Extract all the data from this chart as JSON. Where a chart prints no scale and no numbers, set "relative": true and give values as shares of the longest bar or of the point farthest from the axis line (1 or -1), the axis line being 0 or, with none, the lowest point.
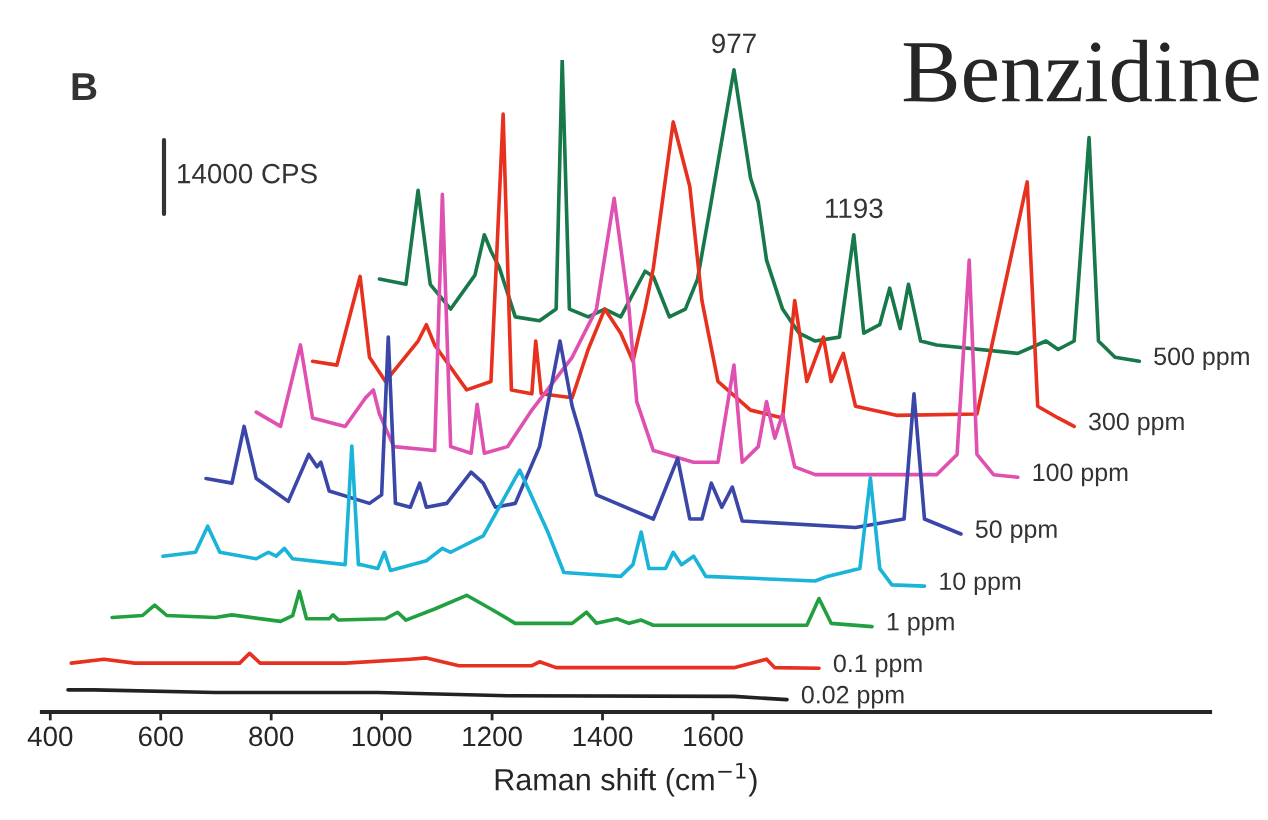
{
  "chart_data": {
    "type": "line",
    "title": "Benzidine",
    "xlabel": "Raman shift (cm$^{−1}$)",
    "relative": true,
    "xlim": [
      385,
      2500
    ],
    "xticks": [
      400,
      600,
      800,
      1000,
      1200,
      1400,
      1600
    ],
    "grid": false,
    "legend": false,
    "line_style": "solid",
    "annotations": [
      "B",
      "14000 CPS",
      {
        "text": "977",
        "x": 1638,
        "y": 0.985
      },
      {
        "text": "1193",
        "x": 1855,
        "y": 0.732
      }
    ],
    "series": [
      {
        "name": "500 ppm",
        "color": "#17784a",
        "x": [
          996,
          1044,
          1066,
          1088,
          1125,
          1169,
          1186,
          1198,
          1213,
          1242,
          1286,
          1316,
          1327,
          1340,
          1374,
          1404,
          1433,
          1477,
          1492,
          1521,
          1550,
          1572,
          1594,
          1638,
          1668,
          1682,
          1697,
          1726,
          1756,
          1785,
          1829,
          1855,
          1873,
          1902,
          1920,
          1939,
          1954,
          1976,
          2005,
          2152,
          2203,
          2225,
          2254,
          2281,
          2298,
          2328,
          2372
        ],
        "values": [
          0.664,
          0.656,
          0.8,
          0.656,
          0.618,
          0.67,
          0.732,
          0.707,
          0.682,
          0.606,
          0.6,
          0.618,
          1.0,
          0.618,
          0.606,
          0.618,
          0.606,
          0.676,
          0.668,
          0.606,
          0.618,
          0.664,
          0.769,
          0.985,
          0.819,
          0.782,
          0.693,
          0.618,
          0.581,
          0.569,
          0.575,
          0.732,
          0.581,
          0.594,
          0.65,
          0.588,
          0.656,
          0.569,
          0.563,
          0.55,
          0.569,
          0.556,
          0.569,
          0.881,
          0.569,
          0.544,
          0.538
        ]
      },
      {
        "name": "300 ppm",
        "color": "#e8301e",
        "x": [
          875,
          919,
          961,
          978,
          1007,
          1066,
          1081,
          1096,
          1154,
          1198,
          1220,
          1235,
          1272,
          1279,
          1289,
          1345,
          1374,
          1404,
          1433,
          1455,
          1477,
          1492,
          1528,
          1558,
          1580,
          1609,
          1668,
          1726,
          1748,
          1770,
          1800,
          1814,
          1836,
          1858,
          1932,
          2078,
          2169,
          2188,
          2225,
          2254
        ],
        "values": [
          0.538,
          0.532,
          0.668,
          0.544,
          0.507,
          0.569,
          0.594,
          0.563,
          0.494,
          0.507,
          0.917,
          0.494,
          0.488,
          0.569,
          0.488,
          0.482,
          0.556,
          0.618,
          0.581,
          0.538,
          0.618,
          0.681,
          0.905,
          0.806,
          0.631,
          0.507,
          0.463,
          0.451,
          0.631,
          0.507,
          0.575,
          0.507,
          0.55,
          0.469,
          0.455,
          0.457,
          0.813,
          0.469,
          0.451,
          0.438
        ]
      },
      {
        "name": "100 ppm",
        "color": "#e050b0",
        "x": [
          773,
          817,
          853,
          875,
          934,
          971,
          985,
          996,
          1022,
          1096,
          1110,
          1125,
          1162,
          1173,
          1186,
          1228,
          1272,
          1345,
          1389,
          1421,
          1448,
          1462,
          1492,
          1565,
          1609,
          1638,
          1653,
          1682,
          1697,
          1712,
          1726,
          1748,
          1785,
          2005,
          2042,
          2064,
          2078,
          2108,
          2152
        ],
        "values": [
          0.46,
          0.438,
          0.563,
          0.451,
          0.438,
          0.482,
          0.494,
          0.457,
          0.407,
          0.401,
          0.794,
          0.407,
          0.397,
          0.472,
          0.397,
          0.407,
          0.463,
          0.544,
          0.618,
          0.788,
          0.618,
          0.476,
          0.401,
          0.383,
          0.383,
          0.532,
          0.383,
          0.407,
          0.476,
          0.42,
          0.457,
          0.376,
          0.364,
          0.364,
          0.395,
          0.693,
          0.395,
          0.364,
          0.36
        ]
      },
      {
        "name": "50 ppm",
        "color": "#3a46a8",
        "x": [
          682,
          729,
          751,
          773,
          831,
          868,
          883,
          890,
          905,
          978,
          1000,
          1012,
          1025,
          1052,
          1069,
          1081,
          1118,
          1162,
          1184,
          1206,
          1242,
          1286,
          1323,
          1345,
          1360,
          1389,
          1492,
          1536,
          1558,
          1580,
          1597,
          1616,
          1635,
          1653,
          1858,
          1946,
          1964,
          1983,
          2049
        ],
        "values": [
          0.358,
          0.351,
          0.438,
          0.358,
          0.323,
          0.395,
          0.376,
          0.383,
          0.339,
          0.32,
          0.333,
          0.575,
          0.32,
          0.314,
          0.351,
          0.314,
          0.32,
          0.368,
          0.351,
          0.314,
          0.32,
          0.407,
          0.569,
          0.469,
          0.426,
          0.333,
          0.296,
          0.389,
          0.296,
          0.296,
          0.351,
          0.314,
          0.345,
          0.293,
          0.283,
          0.296,
          0.488,
          0.296,
          0.273
        ]
      },
      {
        "name": "10 ppm",
        "color": "#19b4d8",
        "x": [
          604,
          663,
          685,
          707,
          773,
          795,
          809,
          824,
          839,
          934,
          946,
          958,
          963,
          993,
          1005,
          1016,
          1081,
          1110,
          1125,
          1184,
          1250,
          1272,
          1301,
          1330,
          1433,
          1455,
          1470,
          1484,
          1514,
          1528,
          1543,
          1565,
          1587,
          1785,
          1807,
          1866,
          1885,
          1902,
          1924,
          1983
        ],
        "values": [
          0.239,
          0.245,
          0.285,
          0.245,
          0.235,
          0.245,
          0.239,
          0.251,
          0.235,
          0.226,
          0.408,
          0.226,
          0.226,
          0.22,
          0.245,
          0.217,
          0.232,
          0.251,
          0.245,
          0.27,
          0.371,
          0.33,
          0.276,
          0.214,
          0.208,
          0.226,
          0.276,
          0.22,
          0.22,
          0.245,
          0.226,
          0.239,
          0.208,
          0.201,
          0.208,
          0.22,
          0.359,
          0.22,
          0.195,
          0.193
        ]
      },
      {
        "name": "1 ppm",
        "color": "#22a040",
        "x": [
          512,
          567,
          589,
          611,
          699,
          729,
          817,
          839,
          851,
          864,
          905,
          912,
          922,
          1007,
          1029,
          1044,
          1096,
          1154,
          1198,
          1242,
          1345,
          1371,
          1389,
          1426,
          1448,
          1470,
          1492,
          1770,
          1792,
          1814,
          1888
        ],
        "values": [
          0.145,
          0.148,
          0.164,
          0.148,
          0.145,
          0.149,
          0.139,
          0.148,
          0.185,
          0.143,
          0.143,
          0.149,
          0.141,
          0.143,
          0.153,
          0.141,
          0.158,
          0.179,
          0.158,
          0.136,
          0.136,
          0.153,
          0.136,
          0.143,
          0.136,
          0.141,
          0.133,
          0.133,
          0.174,
          0.136,
          0.131
        ]
      },
      {
        "name": "0.1 ppm",
        "color": "#e83020",
        "x": [
          438,
          497,
          553,
          743,
          761,
          780,
          934,
          1052,
          1081,
          1140,
          1272,
          1286,
          1316,
          1638,
          1697,
          1712,
          1792
        ],
        "values": [
          0.075,
          0.081,
          0.075,
          0.075,
          0.09,
          0.075,
          0.075,
          0.081,
          0.083,
          0.071,
          0.071,
          0.077,
          0.068,
          0.068,
          0.081,
          0.068,
          0.067
        ]
      },
      {
        "name": "0.02 ppm",
        "color": "#222222",
        "x": [
          432,
          479,
          699,
          993,
          1228,
          1638,
          1734
        ],
        "values": [
          0.034,
          0.034,
          0.03,
          0.03,
          0.025,
          0.024,
          0.019
        ]
      }
    ]
  }
}
